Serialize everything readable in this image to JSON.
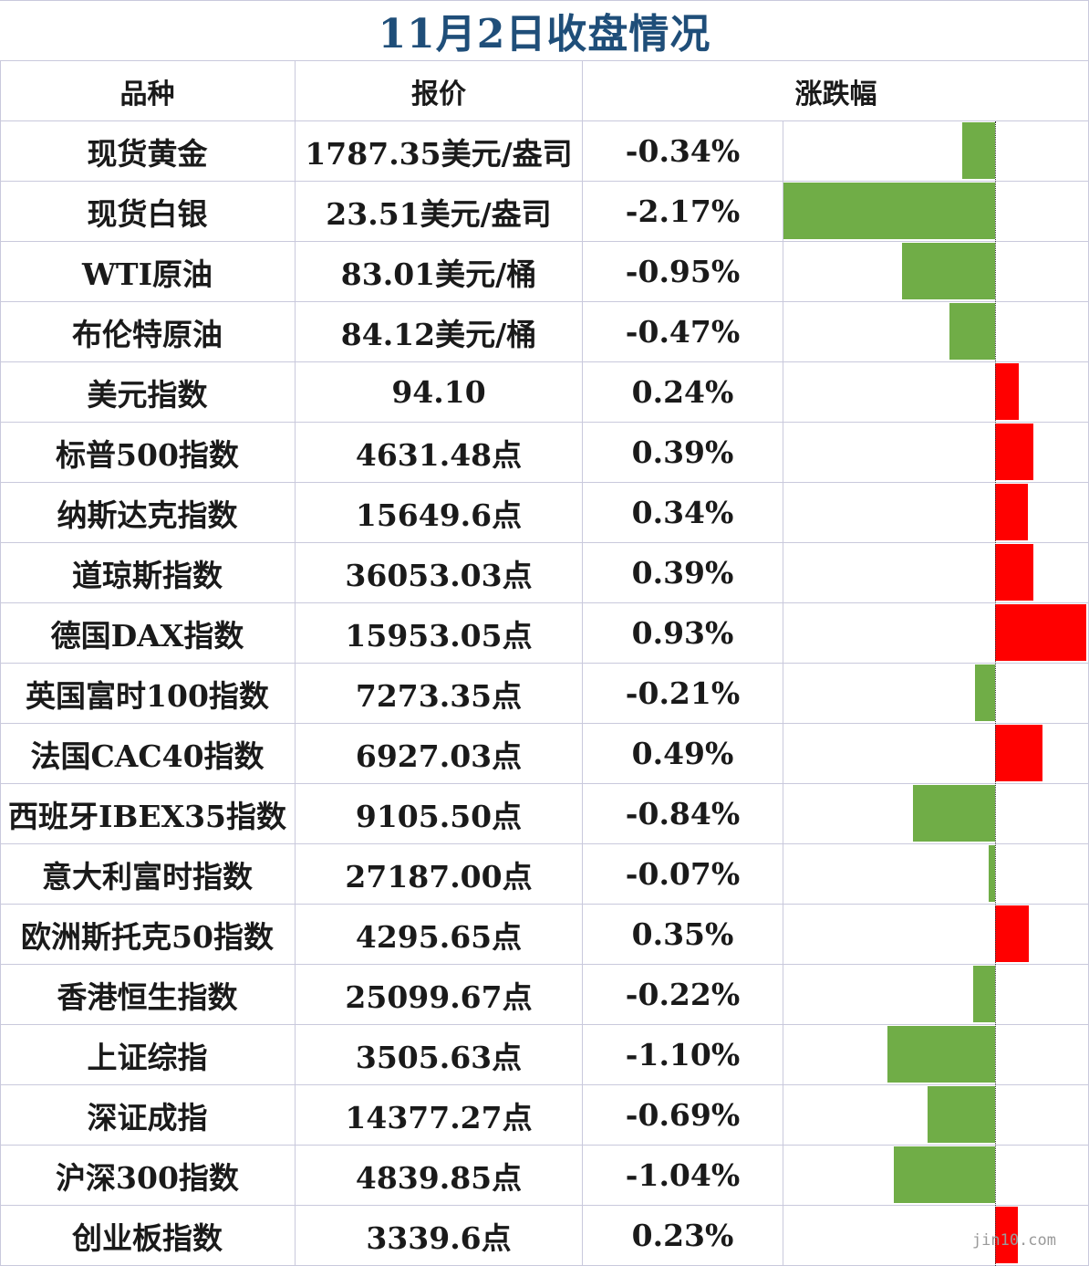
{
  "title": "11月2日收盘情况",
  "headers": {
    "variety": "品种",
    "quote": "报价",
    "change": "涨跌幅"
  },
  "watermark": "jin10.com",
  "colors": {
    "title": "#1f4e79",
    "positive": "#ff0000",
    "negative": "#70ad47",
    "grid": "#c9c9dc"
  },
  "chart_data": {
    "type": "bar",
    "orientation": "horizontal",
    "categories": [
      "现货黄金",
      "现货白银",
      "WTI原油",
      "布伦特原油",
      "美元指数",
      "标普500指数",
      "纳斯达克指数",
      "道琼斯指数",
      "德国DAX指数",
      "英国富时100指数",
      "法国CAC40指数",
      "西班牙IBEX35指数",
      "意大利富时指数",
      "欧洲斯托克50指数",
      "香港恒生指数",
      "上证综指",
      "深证成指",
      "沪深300指数",
      "创业板指数"
    ],
    "series": [
      {
        "values": [
          -0.34,
          -2.17,
          -0.95,
          -0.47,
          0.24,
          0.39,
          0.34,
          0.39,
          0.93,
          -0.21,
          0.49,
          -0.84,
          -0.07,
          0.35,
          -0.22,
          -1.1,
          -0.69,
          -1.04,
          0.23
        ]
      }
    ],
    "xlim": [
      -2.17,
      0.93
    ]
  },
  "rows": [
    {
      "name": "现货黄金",
      "price": "1787.35美元/盎司",
      "pct": "-0.34%"
    },
    {
      "name": "现货白银",
      "price": "23.51美元/盎司",
      "pct": "-2.17%"
    },
    {
      "name": "WTI原油",
      "price": "83.01美元/桶",
      "pct": "-0.95%"
    },
    {
      "name": "布伦特原油",
      "price": "84.12美元/桶",
      "pct": "-0.47%"
    },
    {
      "name": "美元指数",
      "price": "94.10",
      "pct": "0.24%"
    },
    {
      "name": "标普500指数",
      "price": "4631.48点",
      "pct": "0.39%"
    },
    {
      "name": "纳斯达克指数",
      "price": "15649.6点",
      "pct": "0.34%"
    },
    {
      "name": "道琼斯指数",
      "price": "36053.03点",
      "pct": "0.39%"
    },
    {
      "name": "德国DAX指数",
      "price": "15953.05点",
      "pct": "0.93%"
    },
    {
      "name": "英国富时100指数",
      "price": "7273.35点",
      "pct": "-0.21%"
    },
    {
      "name": "法国CAC40指数",
      "price": "6927.03点",
      "pct": "0.49%"
    },
    {
      "name": "西班牙IBEX35指数",
      "price": "9105.50点",
      "pct": "-0.84%"
    },
    {
      "name": "意大利富时指数",
      "price": "27187.00点",
      "pct": "-0.07%"
    },
    {
      "name": "欧洲斯托克50指数",
      "price": "4295.65点",
      "pct": "0.35%"
    },
    {
      "name": "香港恒生指数",
      "price": "25099.67点",
      "pct": "-0.22%"
    },
    {
      "name": "上证综指",
      "price": "3505.63点",
      "pct": "-1.10%"
    },
    {
      "name": "深证成指",
      "price": "14377.27点",
      "pct": "-0.69%"
    },
    {
      "name": "沪深300指数",
      "price": "4839.85点",
      "pct": "-1.04%"
    },
    {
      "name": "创业板指数",
      "price": "3339.6点",
      "pct": "0.23%"
    }
  ]
}
